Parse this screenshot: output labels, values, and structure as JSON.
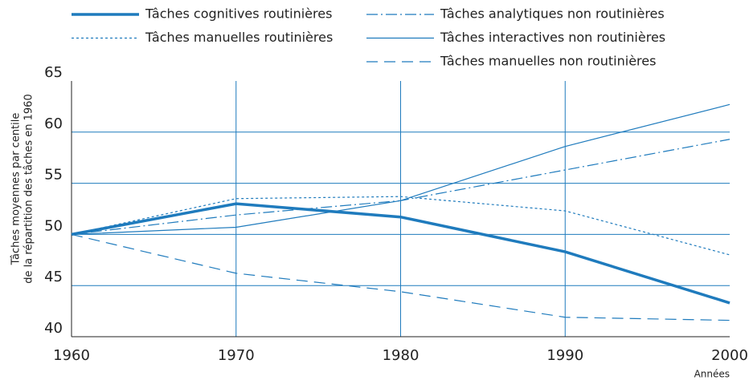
{
  "chart_data": {
    "type": "line",
    "ylabel": [
      "Tâches moyennes par centile",
      "de la répartition des tâches en 1960"
    ],
    "xlabel": "Années",
    "x": [
      1960,
      1970,
      1980,
      1990,
      2000
    ],
    "xlim": [
      1960,
      2000
    ],
    "xticks": [
      1960,
      1970,
      1980,
      1990,
      2000
    ],
    "ylim": [
      40,
      65
    ],
    "yticks": [
      40,
      45,
      50,
      55,
      60,
      65
    ],
    "grid": true,
    "series": [
      {
        "name": "Tâches cognitives routinières",
        "color": "#1f7bbd",
        "linestyle": "solid",
        "linewidth": 3.5,
        "values": [
          50,
          53.0,
          51.7,
          48.3,
          43.3
        ]
      },
      {
        "name": "Tâches manuelles routinières",
        "color": "#1f7bbd",
        "linestyle": "dotted",
        "linewidth": 1.2,
        "values": [
          50,
          53.5,
          53.7,
          52.3,
          48.0
        ]
      },
      {
        "name": "Tâches analytiques non routinières",
        "color": "#1f7bbd",
        "linestyle": "dashdot",
        "linewidth": 1.2,
        "values": [
          50,
          51.9,
          53.3,
          56.3,
          59.3
        ]
      },
      {
        "name": "Tâches interactives non routinières",
        "color": "#1f7bbd",
        "linestyle": "solid",
        "linewidth": 1.2,
        "values": [
          50,
          50.7,
          53.3,
          58.6,
          62.7
        ]
      },
      {
        "name": "Tâches manuelles non routinières",
        "color": "#1f7bbd",
        "linestyle": "dashed",
        "linewidth": 1.2,
        "values": [
          50,
          46.2,
          44.4,
          41.9,
          41.6
        ]
      }
    ]
  }
}
